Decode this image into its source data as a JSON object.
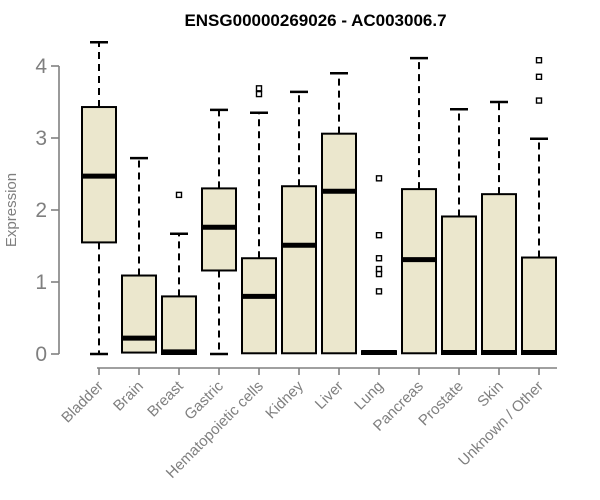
{
  "chart_data": {
    "type": "boxplot",
    "title": "ENSG00000269026 - AC003006.7",
    "ylabel": "Expression",
    "xlabel": "",
    "ylim": [
      0,
      4.4
    ],
    "yticks": [
      0,
      1,
      2,
      3,
      4
    ],
    "grid": false,
    "legend": "none",
    "categories": [
      "Bladder",
      "Brain",
      "Breast",
      "Gastric",
      "Hematopoietic cells",
      "Kidney",
      "Liver",
      "Lung",
      "Pancreas",
      "Prostate",
      "Skin",
      "Unknown / Other"
    ],
    "series": [
      {
        "category": "Bladder",
        "whisker_low": 0.0,
        "q1": 1.55,
        "median": 2.47,
        "q3": 3.43,
        "whisker_high": 4.33,
        "outliers": []
      },
      {
        "category": "Brain",
        "whisker_low": 0.0,
        "q1": 0.02,
        "median": 0.22,
        "q3": 1.09,
        "whisker_high": 2.72,
        "outliers": []
      },
      {
        "category": "Breast",
        "whisker_low": 0.0,
        "q1": 0.0,
        "median": 0.03,
        "q3": 0.8,
        "whisker_high": 1.67,
        "outliers": [
          2.21
        ]
      },
      {
        "category": "Gastric",
        "whisker_low": 0.0,
        "q1": 1.16,
        "median": 1.76,
        "q3": 2.3,
        "whisker_high": 3.39,
        "outliers": []
      },
      {
        "category": "Hematopoietic cells",
        "whisker_low": 0.0,
        "q1": 0.01,
        "median": 0.8,
        "q3": 1.33,
        "whisker_high": 3.35,
        "outliers": [
          3.69,
          3.61
        ]
      },
      {
        "category": "Kidney",
        "whisker_low": 0.0,
        "q1": 0.01,
        "median": 1.51,
        "q3": 2.33,
        "whisker_high": 3.64,
        "outliers": []
      },
      {
        "category": "Liver",
        "whisker_low": 0.0,
        "q1": 0.01,
        "median": 2.26,
        "q3": 3.06,
        "whisker_high": 3.9,
        "outliers": []
      },
      {
        "category": "Lung",
        "whisker_low": 0.0,
        "q1": 0.0,
        "median": 0.02,
        "q3": 0.04,
        "whisker_high": 0.04,
        "outliers": [
          2.44,
          1.65,
          1.33,
          1.18,
          1.11,
          0.87
        ]
      },
      {
        "category": "Pancreas",
        "whisker_low": 0.0,
        "q1": 0.01,
        "median": 1.31,
        "q3": 2.29,
        "whisker_high": 4.11,
        "outliers": []
      },
      {
        "category": "Prostate",
        "whisker_low": 0.0,
        "q1": 0.0,
        "median": 0.02,
        "q3": 1.91,
        "whisker_high": 3.4,
        "outliers": []
      },
      {
        "category": "Skin",
        "whisker_low": 0.0,
        "q1": 0.0,
        "median": 0.02,
        "q3": 2.22,
        "whisker_high": 3.5,
        "outliers": []
      },
      {
        "category": "Unknown / Other",
        "whisker_low": 0.0,
        "q1": 0.0,
        "median": 0.02,
        "q3": 1.34,
        "whisker_high": 2.99,
        "outliers": [
          4.08,
          3.85,
          3.52
        ]
      }
    ]
  },
  "colors": {
    "background": "#FFFFFF",
    "box_fill": "#EBE7CD",
    "box_border": "#000000",
    "median": "#000000",
    "whisker": "#000000",
    "outlier_fill": "#FFFFFF",
    "outlier_border": "#000000",
    "axis": "#808080",
    "tick_label": "#7F7F7F",
    "axis_label": "#7F7F7F",
    "title": "#000000"
  }
}
